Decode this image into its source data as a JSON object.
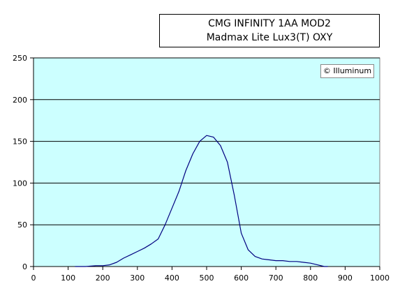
{
  "chart_data": {
    "type": "line",
    "title": "CMG INFINITY 1AA MOD2",
    "subtitle": "Madmax Lite Lux3(T) OXY",
    "credit": "© Illuminum",
    "xlabel": "",
    "ylabel": "",
    "xlim": [
      0,
      1000
    ],
    "ylim": [
      0,
      250
    ],
    "xticks": [
      0,
      100,
      200,
      300,
      400,
      500,
      600,
      700,
      800,
      900,
      1000
    ],
    "yticks": [
      0,
      50,
      100,
      150,
      200,
      250
    ],
    "grid": "horizontal",
    "legend": "none",
    "colors": {
      "plot_bg": "#ccffff",
      "line": "#000080",
      "grid": "#000000"
    },
    "series": [
      {
        "x": [
          120,
          150,
          180,
          200,
          220,
          240,
          260,
          280,
          300,
          320,
          340,
          360,
          380,
          400,
          420,
          440,
          460,
          480,
          500,
          520,
          540,
          560,
          580,
          600,
          620,
          640,
          660,
          680,
          700,
          720,
          740,
          760,
          780,
          800,
          820,
          840,
          850
        ],
        "y": [
          0,
          0,
          1,
          1,
          2,
          5,
          10,
          14,
          18,
          22,
          27,
          33,
          50,
          70,
          90,
          115,
          135,
          150,
          157,
          155,
          145,
          125,
          85,
          40,
          20,
          12,
          9,
          8,
          7,
          7,
          6,
          6,
          5,
          4,
          2,
          0,
          0
        ]
      }
    ]
  }
}
